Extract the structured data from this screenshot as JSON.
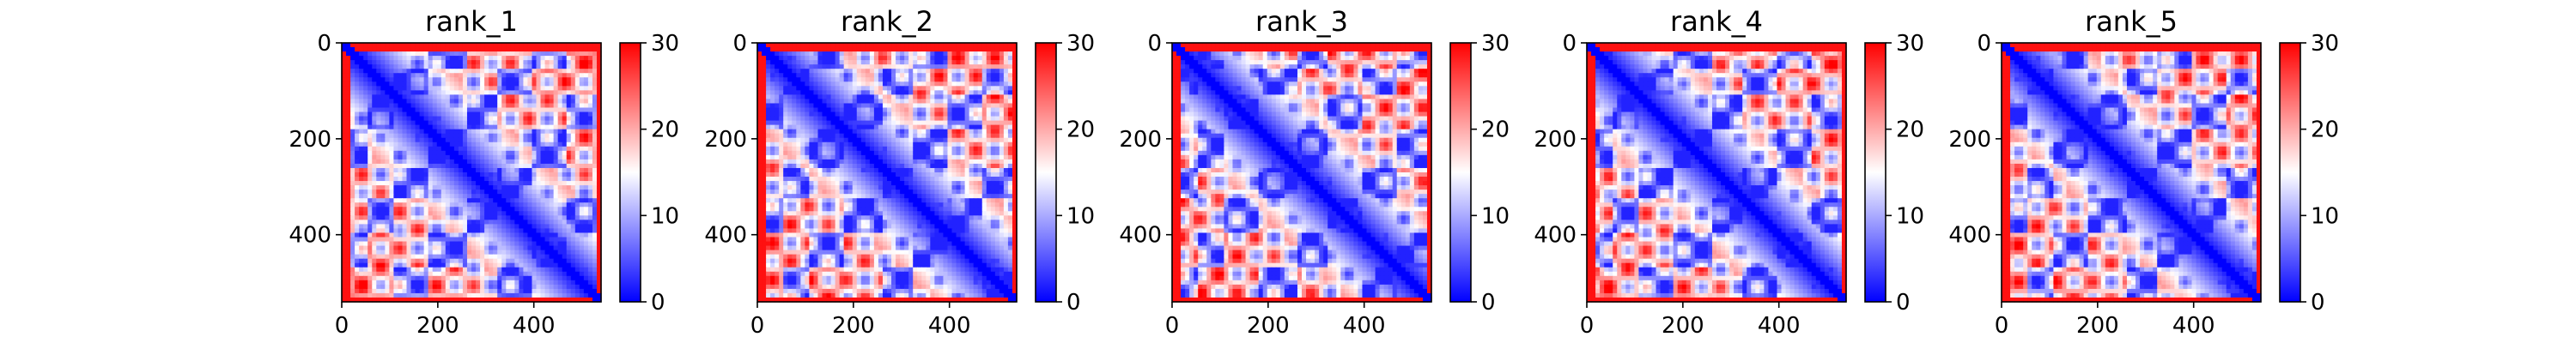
{
  "chart_data": [
    {
      "type": "heatmap",
      "title": "rank_1",
      "xticks": [
        0,
        200,
        400
      ],
      "yticks": [
        0,
        200,
        400
      ],
      "xlim": [
        0,
        540
      ],
      "ylim": [
        540,
        0
      ],
      "colorbar": {
        "ticks": [
          0,
          10,
          20,
          30
        ],
        "range": [
          0,
          30
        ],
        "colormap": "bwr"
      },
      "variant": 0
    },
    {
      "type": "heatmap",
      "title": "rank_2",
      "xticks": [
        0,
        200,
        400
      ],
      "yticks": [
        0,
        200,
        400
      ],
      "xlim": [
        0,
        540
      ],
      "ylim": [
        540,
        0
      ],
      "colorbar": {
        "ticks": [
          0,
          10,
          20,
          30
        ],
        "range": [
          0,
          30
        ],
        "colormap": "bwr"
      },
      "variant": 1
    },
    {
      "type": "heatmap",
      "title": "rank_3",
      "xticks": [
        0,
        200,
        400
      ],
      "yticks": [
        0,
        200,
        400
      ],
      "xlim": [
        0,
        540
      ],
      "ylim": [
        540,
        0
      ],
      "colorbar": {
        "ticks": [
          0,
          10,
          20,
          30
        ],
        "range": [
          0,
          30
        ],
        "colormap": "bwr"
      },
      "variant": 2
    },
    {
      "type": "heatmap",
      "title": "rank_4",
      "xticks": [
        0,
        200,
        400
      ],
      "yticks": [
        0,
        200,
        400
      ],
      "xlim": [
        0,
        540
      ],
      "ylim": [
        540,
        0
      ],
      "colorbar": {
        "ticks": [
          0,
          10,
          20,
          30
        ],
        "range": [
          0,
          30
        ],
        "colormap": "bwr"
      },
      "variant": 3
    },
    {
      "type": "heatmap",
      "title": "rank_5",
      "xticks": [
        0,
        200,
        400
      ],
      "yticks": [
        0,
        200,
        400
      ],
      "xlim": [
        0,
        540
      ],
      "ylim": [
        540,
        0
      ],
      "colorbar": {
        "ticks": [
          0,
          10,
          20,
          30
        ],
        "range": [
          0,
          30
        ],
        "colormap": "bwr"
      },
      "variant": 4
    }
  ],
  "colors": {
    "low": "#0000ff",
    "mid": "#ffffff",
    "high": "#ff0000"
  }
}
